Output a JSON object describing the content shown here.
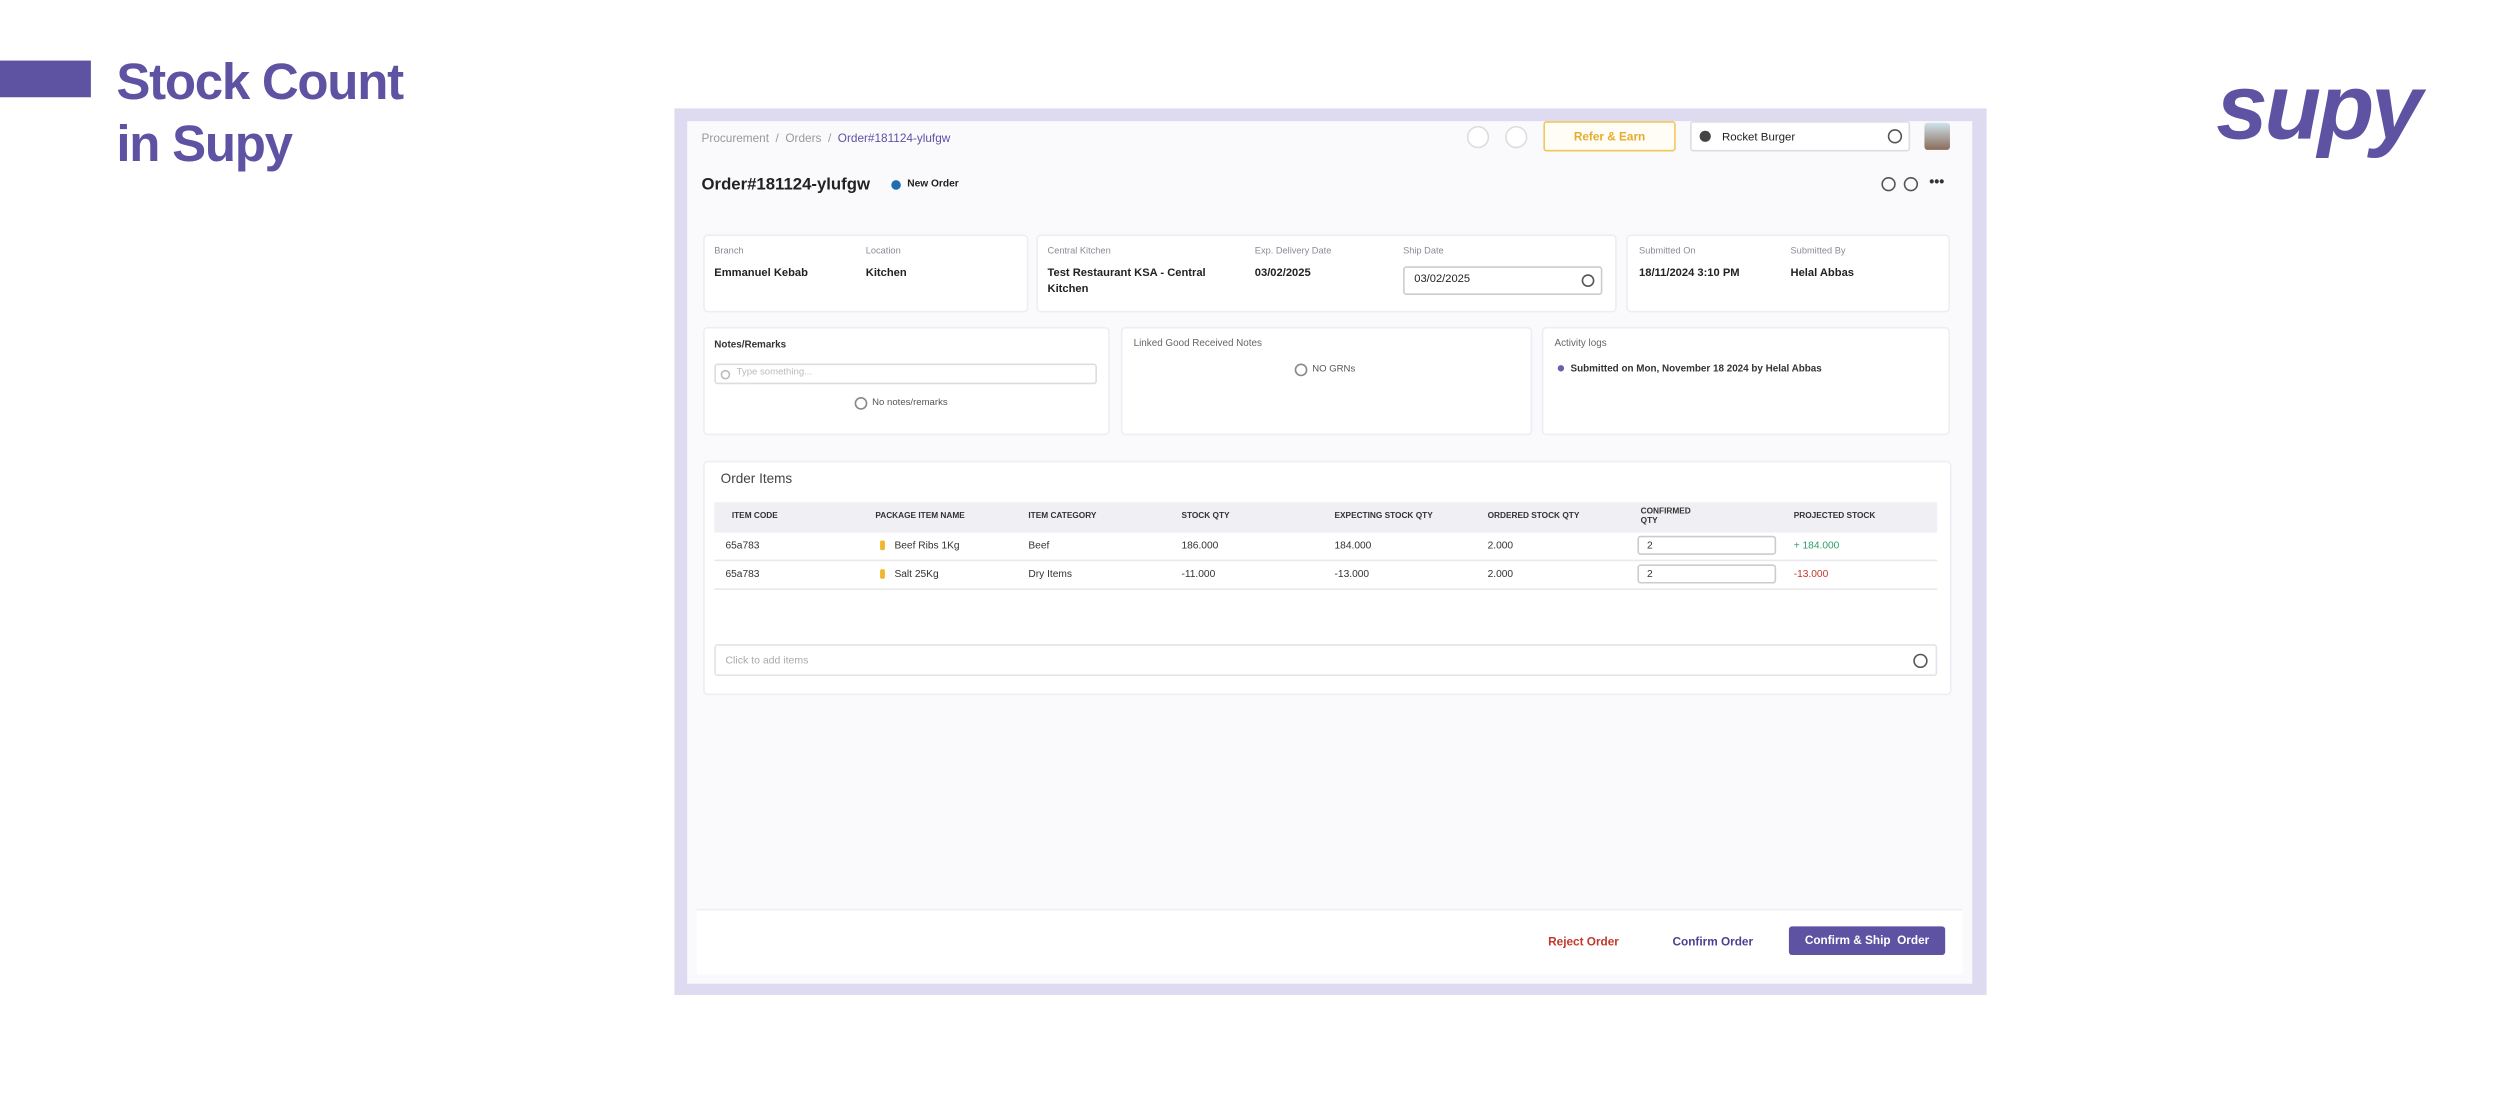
{
  "header": {
    "title_lines": [
      "Stock Count",
      "in Supy"
    ],
    "logo": "supy"
  },
  "topbar": {
    "breadcrumb": [
      "Procurement",
      "Orders",
      "Order#181124-ylufgw"
    ],
    "refer": "Refer & Earn",
    "restaurant": "Rocket Burger"
  },
  "order": {
    "title": "Order#181124-ylufgw",
    "status": "New Order"
  },
  "info": {
    "branch": {
      "label": "Branch",
      "value": "Emmanuel Kebab"
    },
    "location": {
      "label": "Location",
      "value": "Kitchen"
    },
    "central_kitchen": {
      "label": "Central Kitchen",
      "value_lines": [
        "Test Restaurant KSA - Central",
        "Kitchen"
      ]
    },
    "exp_delivery": {
      "label": "Exp. Delivery Date",
      "value": "03/02/2025"
    },
    "ship_date": {
      "label": "Ship Date",
      "value": "03/02/2025"
    },
    "submitted_on": {
      "label": "Submitted On",
      "value": "18/11/2024 3:10 PM"
    },
    "submitted_by": {
      "label": "Submitted By",
      "value": "Helal Abbas"
    }
  },
  "notes": {
    "title": "Notes/Remarks",
    "placeholder": "Type something...",
    "empty": "No notes/remarks"
  },
  "grns": {
    "title": "Linked Good Received Notes",
    "empty": "NO GRNs"
  },
  "activity": {
    "title": "Activity logs",
    "entries": [
      "Submitted on Mon, November 18 2024 by Helal Abbas"
    ]
  },
  "table": {
    "title": "Order Items",
    "columns": [
      "ITEM CODE",
      "PACKAGE ITEM NAME",
      "ITEM CATEGORY",
      "STOCK QTY",
      "EXPECTING STOCK QTY",
      "ORDERED STOCK QTY",
      "CONFIRMED QTY",
      "PROJECTED STOCK"
    ],
    "rows": [
      [
        "65a783",
        "Beef Ribs 1Kg",
        "Beef",
        "186.000",
        "184.000",
        "2.000",
        "2",
        "+ 184.000"
      ],
      [
        "65a783",
        "Salt 25Kg",
        "Dry Items",
        "-11.000",
        "-13.000",
        "2.000",
        "2",
        "-13.000"
      ]
    ],
    "add_placeholder": "Click to add items"
  },
  "actions": {
    "reject": "Reject Order",
    "confirm": "Confirm Order",
    "confirm_ship": "Confirm & Ship  Order"
  }
}
